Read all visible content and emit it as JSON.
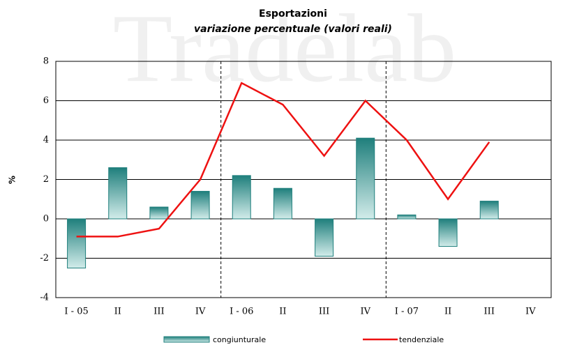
{
  "chart_data": {
    "type": "bar_line",
    "title": "Esportazioni",
    "subtitle": "variazione percentuale (valori reali)",
    "y_label": "%",
    "watermark": "Tradelab",
    "categories": [
      "I - 05",
      "II",
      "III",
      "IV",
      "I - 06",
      "II",
      "III",
      "IV",
      "I - 07",
      "II",
      "III",
      "IV"
    ],
    "series": [
      {
        "name": "congiunturale",
        "type": "bar",
        "color": "#1f7f7c",
        "values": [
          -2.5,
          2.6,
          0.6,
          1.4,
          2.2,
          1.55,
          -1.9,
          4.1,
          0.2,
          -1.4,
          0.9,
          null
        ]
      },
      {
        "name": "tendenziale",
        "type": "line",
        "color": "#ee1111",
        "values": [
          -0.9,
          -0.9,
          -0.5,
          2.0,
          6.9,
          5.8,
          3.2,
          6.0,
          4.0,
          1.0,
          3.9,
          null
        ]
      }
    ],
    "ylim": [
      -4,
      8
    ],
    "yticks": [
      -4,
      -2,
      0,
      2,
      4,
      6,
      8
    ],
    "grid": true
  }
}
